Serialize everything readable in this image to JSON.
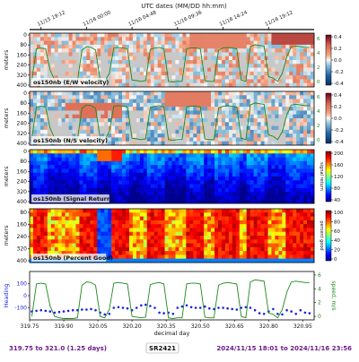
{
  "figure": {
    "top_label": "UTC dates (MM/DD hh:mm)",
    "top_ticks": [
      "11/15 19:12",
      "11/16 00:00",
      "11/16 04:48",
      "11/16 09:36",
      "11/16 14:24",
      "11/16 19:12"
    ],
    "bottom_left": "319.75 to 321.0 (1.25 days)",
    "bottom_center": "SR2421",
    "bottom_right": "2024/11/15 18:01 to 2024/11/16 23:56"
  },
  "chart_data": [
    {
      "type": "heatmap",
      "title": "os150nb (E/W velocity)",
      "ylabel": "meters",
      "yticks": [
        "0",
        "80",
        "160",
        "240",
        "320",
        "400"
      ],
      "colorbar_ticks": [
        "0.4",
        "0.2",
        "0.0",
        "-0.2",
        "-0.4"
      ],
      "colorbar_range": [
        -0.4,
        0.4
      ],
      "colormap": "RdBu_r",
      "right_axis_label": "speed, m/s",
      "right_axis_ticks": [
        "6",
        "4",
        "2",
        "0"
      ]
    },
    {
      "type": "heatmap",
      "title": "os150nb (N/S velocity)",
      "ylabel": "meters",
      "yticks": [
        "0",
        "80",
        "160",
        "240",
        "320",
        "400"
      ],
      "colorbar_ticks": [
        "0.4",
        "0.2",
        "0.0",
        "-0.2",
        "-0.4"
      ],
      "colorbar_range": [
        -0.4,
        0.4
      ],
      "colormap": "RdBu_r",
      "right_axis_label": "speed, m/s",
      "right_axis_ticks": [
        "6",
        "4",
        "2",
        "0"
      ]
    },
    {
      "type": "heatmap",
      "title": "os150nb (Signal Return)",
      "ylabel": "meters",
      "yticks": [
        "0",
        "80",
        "160",
        "240",
        "320",
        "400"
      ],
      "colorbar_ticks": [
        "200",
        "160",
        "120",
        "80",
        "40"
      ],
      "colorbar_range": [
        20,
        200
      ],
      "colormap": "jet",
      "colorbar_label": "signal return"
    },
    {
      "type": "heatmap",
      "title": "os150nb (Percent Good)",
      "ylabel": "meters",
      "yticks": [
        "80",
        "160",
        "240",
        "320",
        "400"
      ],
      "colorbar_ticks": [
        "100",
        "80",
        "60",
        "40",
        "20",
        "0"
      ],
      "colorbar_range": [
        0,
        100
      ],
      "colormap": "jet",
      "colorbar_label": "percent good"
    },
    {
      "type": "line",
      "ylabel": "Heading",
      "ylabel_right": "speed, m/s",
      "yticks": [
        "100",
        "0",
        "-100"
      ],
      "yticks_right": [
        "6",
        "4",
        "2",
        "0"
      ],
      "xlabel": "decimal day",
      "xticks": [
        "319.75",
        "319.90",
        "320.05",
        "320.20",
        "320.35",
        "320.50",
        "320.65",
        "320.80",
        "320.95"
      ],
      "xlim": [
        319.75,
        321.0
      ],
      "series": [
        {
          "color": "#1d22e0",
          "marker": "point",
          "x": [
            319.76,
            319.78,
            319.8,
            319.82,
            319.84,
            319.86,
            319.88,
            319.9,
            319.92,
            319.94,
            319.96,
            319.98,
            320.0,
            320.02,
            320.04,
            320.06,
            320.08,
            320.1,
            320.12,
            320.14,
            320.16,
            320.18,
            320.2,
            320.22,
            320.24,
            320.26,
            320.28,
            320.3,
            320.32,
            320.34,
            320.36,
            320.38,
            320.4,
            320.42,
            320.44,
            320.46,
            320.48,
            320.5,
            320.52,
            320.54,
            320.56,
            320.58,
            320.6,
            320.62,
            320.64,
            320.66,
            320.68,
            320.7,
            320.72,
            320.74,
            320.76,
            320.78,
            320.8,
            320.82,
            320.84,
            320.86,
            320.88,
            320.9,
            320.92,
            320.94,
            320.96,
            320.98
          ],
          "values": [
            -130,
            -125,
            -120,
            -125,
            -130,
            -140,
            -135,
            -130,
            -125,
            -120,
            -120,
            -115,
            -115,
            -110,
            -120,
            -140,
            -155,
            -150,
            -100,
            -95,
            -100,
            -105,
            -120,
            -100,
            -80,
            -75,
            -85,
            -100,
            -140,
            -145,
            -140,
            -150,
            -100,
            -90,
            -80,
            -95,
            -100,
            -100,
            -90,
            -105,
            -110,
            -100,
            -100,
            -105,
            -110,
            -115,
            -100,
            -95,
            -100,
            -120,
            -145,
            -150,
            -130,
            -110,
            -150,
            -155,
            -120,
            -130,
            -150,
            -120,
            -140,
            -145
          ]
        },
        {
          "color": "#1a8a1a",
          "marker": "line",
          "right_axis": true,
          "x": [
            319.76,
            319.78,
            319.8,
            319.82,
            319.84,
            319.86,
            319.88,
            319.9,
            319.92,
            319.94,
            319.96,
            319.98,
            320.0,
            320.02,
            320.04,
            320.06,
            320.08,
            320.1,
            320.12,
            320.14,
            320.16,
            320.18,
            320.2,
            320.22,
            320.24,
            320.26,
            320.28,
            320.3,
            320.32,
            320.34,
            320.36,
            320.38,
            320.4,
            320.42,
            320.44,
            320.46,
            320.48,
            320.5,
            320.52,
            320.54,
            320.56,
            320.58,
            320.6,
            320.62,
            320.64,
            320.66,
            320.68,
            320.7,
            320.72,
            320.74,
            320.76,
            320.78,
            320.8,
            320.82,
            320.84,
            320.86,
            320.88,
            320.9,
            320.92,
            320.94,
            320.96,
            320.98
          ],
          "values": [
            0.5,
            5.2,
            5.3,
            5.2,
            2.0,
            0.5,
            0.3,
            0.2,
            0.2,
            0.2,
            0.3,
            5.0,
            5.5,
            5.4,
            5.0,
            0.5,
            0.3,
            1.5,
            5.3,
            5.4,
            5.3,
            5.2,
            0.5,
            0.4,
            0.3,
            0.4,
            5.1,
            5.3,
            5.4,
            5.2,
            0.3,
            0.2,
            0.3,
            0.3,
            5.2,
            5.3,
            5.3,
            5.2,
            0.4,
            0.3,
            0.3,
            5.0,
            5.3,
            5.4,
            5.3,
            5.2,
            0.5,
            0.3,
            5.5,
            5.8,
            5.7,
            5.6,
            1.0,
            0.8,
            0.3,
            1.5,
            4.0,
            5.5,
            5.6,
            5.5,
            5.4,
            5.4
          ]
        }
      ],
      "ylim": [
        -200,
        200
      ],
      "ylim_right": [
        0,
        7
      ]
    }
  ]
}
